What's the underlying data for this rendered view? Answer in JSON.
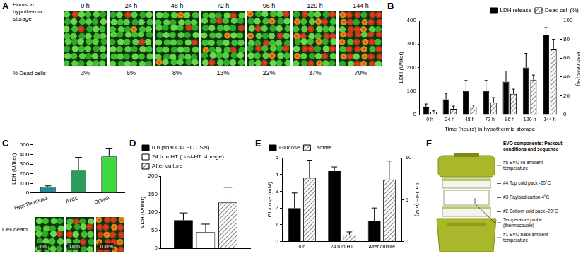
{
  "image_panels": [
    {
      "panel": "A",
      "title": "Hours in hypothermic storage",
      "categories": [
        "0 h",
        "24 h",
        "48 h",
        "72 h",
        "96 h",
        "120 h",
        "144 h"
      ],
      "row_label": "% Dead cells",
      "dead_cells": [
        {
          "value": 3,
          "label": "3%"
        },
        {
          "value": 6,
          "label": "6%"
        },
        {
          "value": 8,
          "label": "8%"
        },
        {
          "value": 13,
          "label": "13%"
        },
        {
          "value": 22,
          "label": "22%"
        },
        {
          "value": 37,
          "label": "37%"
        },
        {
          "value": 70,
          "label": "70%"
        }
      ]
    }
  ],
  "chart_data": [
    {
      "panel": "B",
      "type": "bar",
      "categories": [
        "0 h",
        "24 h",
        "48 h",
        "72 h",
        "96 h",
        "120 h",
        "144 h"
      ],
      "x_label": "Time (hours) in hypothermic storage",
      "y_label": "LDH (U/liter)",
      "y2_label": "Dead cells (%)",
      "ylim": [
        0,
        400
      ],
      "yticks": [
        0,
        100,
        200,
        300,
        400
      ],
      "y2lim": [
        0,
        100
      ],
      "y2ticks": [
        0,
        20,
        40,
        60,
        80,
        100
      ],
      "grid": false,
      "legend": "top-right",
      "series": [
        {
          "name": "LDH release",
          "color": "#000000",
          "values": [
            30,
            65,
            100,
            100,
            140,
            200,
            340
          ],
          "errors": [
            15,
            25,
            45,
            45,
            45,
            60,
            30
          ]
        },
        {
          "name": "Dead cell (%)",
          "color": "#8c8c8c",
          "marker": "hatch",
          "axis": "y2",
          "values": [
            3,
            6,
            8,
            13,
            22,
            37,
            70
          ],
          "errors": [
            1,
            3,
            2,
            5,
            5,
            5,
            10
          ]
        }
      ]
    },
    {
      "panel": "C",
      "type": "bar",
      "categories": [
        "HypoThermosol",
        "ATCC",
        "Optisol"
      ],
      "y_label": "LDH (U/liter)",
      "ylim": [
        0,
        500
      ],
      "yticks": [
        0,
        100,
        200,
        300,
        400,
        500
      ],
      "grid": false,
      "colors": [
        "#1f8a9a",
        "#2e9a5e",
        "#3fd93f"
      ],
      "values": [
        65,
        240,
        380
      ],
      "errors": [
        10,
        130,
        85
      ],
      "images": {
        "label": "Cell death",
        "cell_death": [
          {
            "value": 3,
            "label": "3%"
          },
          {
            "value": 18,
            "label": "18%"
          },
          {
            "value": 100,
            "label": "100%"
          }
        ]
      }
    },
    {
      "panel": "D",
      "type": "bar",
      "categories": [
        null
      ],
      "y_label": "LDH (U/liter)",
      "ylim": [
        0,
        200
      ],
      "yticks": [
        0,
        50,
        100,
        150,
        200
      ],
      "grid": false,
      "legend": "top-left",
      "tick_labels": "y",
      "series": [
        {
          "name": "0 h (final CALEC CSN)",
          "color": "#000000",
          "values": [
            78
          ],
          "errors": [
            20
          ]
        },
        {
          "name": "24 h in HT (post-HT storage)",
          "color": "#ffffff",
          "values": [
            45
          ],
          "errors": [
            22
          ]
        },
        {
          "name": "After culture",
          "color": "#8c8c8c",
          "marker": "hatch",
          "values": [
            127
          ],
          "errors": [
            42
          ]
        }
      ]
    },
    {
      "panel": "E",
      "type": "bar",
      "categories": [
        "0 h",
        "24 h in HT",
        "After culture"
      ],
      "y_label": "Glucose (mM)",
      "y2_label": "Lactate (mM)",
      "ylim": [
        0,
        5
      ],
      "yticks": [
        0,
        1,
        2,
        3,
        4,
        5
      ],
      "y2lim": [
        0,
        10
      ],
      "y2ticks": [
        0,
        5,
        10
      ],
      "grid": false,
      "legend": "top-left",
      "series": [
        {
          "name": "Glucose",
          "color": "#000000",
          "values": [
            2.0,
            4.2,
            1.25
          ],
          "errors": [
            0.9,
            0.25,
            0.75
          ]
        },
        {
          "name": "Lactate",
          "color": "#8c8c8c",
          "marker": "hatch",
          "axis": "y2",
          "values": [
            7.6,
            0.8,
            7.4
          ],
          "errors": [
            2.1,
            0.35,
            2.2
          ]
        }
      ]
    }
  ],
  "diagram": {
    "panel": "F",
    "title": "EVO components: Packout conditions and sequence",
    "components": [
      "#5 EVO lid ambient temperature",
      "#4 Top cold pack -20°C",
      "#3 Payload carton 4°C",
      "#2 Bottom cold pack -20°C",
      "Temperature probe (thermocouple)",
      "#1 EVO base ambient temperature"
    ]
  }
}
